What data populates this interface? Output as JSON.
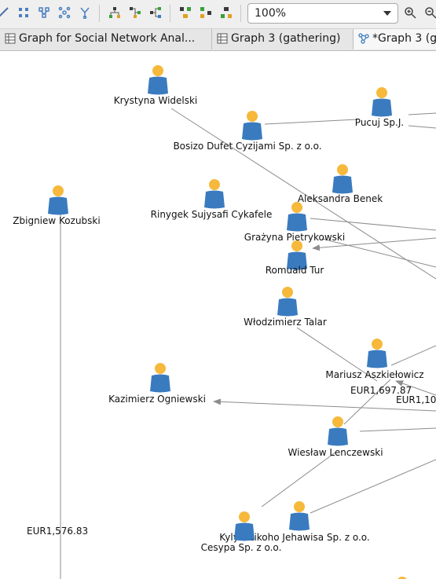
{
  "toolbar": {
    "zoom_value": "100%",
    "buttons": [
      "layout-icon",
      "grid-layout-icon",
      "tree-layout-icon",
      "radial-layout-icon",
      "branch-icon",
      "hierarchy-icon",
      "hierarchy-alt-icon",
      "hierarchy-compact-icon",
      "align-icon",
      "align-alt-icon",
      "align-compact-icon",
      "zoom-in-icon",
      "zoom-out-icon"
    ]
  },
  "tabs": [
    {
      "label": "Graph for Social Network Anal...",
      "icon": "table-icon",
      "active": false
    },
    {
      "label": "Graph 3 (gathering)",
      "icon": "table-icon",
      "active": false
    },
    {
      "label": "*Graph 3 (g",
      "icon": "graph-icon",
      "active": true
    }
  ],
  "graph": {
    "colors": {
      "head": "#f6b93b",
      "body": "#3a7bbf",
      "edge": "#8c8c8c"
    },
    "nodes": [
      {
        "name": "krystyna-widelski",
        "label": "Krystyna Widelski"
      },
      {
        "name": "pucuj-sp-j",
        "label": "Pucuj Sp.J."
      },
      {
        "name": "bosizo-dufet",
        "label": "Bosizo Dufet Cyzijami Sp. z o.o."
      },
      {
        "name": "aleksandra-benek",
        "label": "Aleksandra Benek"
      },
      {
        "name": "zbigniew-kozubski",
        "label": "Zbigniew Kozubski"
      },
      {
        "name": "rinygek-sujysafi",
        "label": "Rinygek Sujysafi Cykafele"
      },
      {
        "name": "grazyna-pietrykowski",
        "label": "Grażyna Pietrykowski"
      },
      {
        "name": "romuald-tur",
        "label": "Romuald Tur"
      },
      {
        "name": "wlodzimierz-talar",
        "label": "Włodzimierz Talar"
      },
      {
        "name": "mariusz-askielowicz",
        "label": "Mariusz Aszkiełowicz"
      },
      {
        "name": "kazimierz-ogniewski",
        "label": "Kazimierz Ogniewski"
      },
      {
        "name": "wieslaw-lenczewski",
        "label": "Wiesław Lenczewski"
      },
      {
        "name": "kylyd-zikoho",
        "label": "Kylyd Zikoho Jehawisa Sp. z o.o."
      },
      {
        "name": "cesypa-sp",
        "label": "Cesypa Sp. z o.o."
      },
      {
        "name": "offscreen-node",
        "label": ""
      }
    ],
    "edge_labels": [
      {
        "name": "amount-label-1",
        "text": "EUR1,697.87"
      },
      {
        "name": "amount-label-2",
        "text": "EUR1,10"
      },
      {
        "name": "amount-label-3",
        "text": "EUR1,576.83"
      }
    ]
  }
}
